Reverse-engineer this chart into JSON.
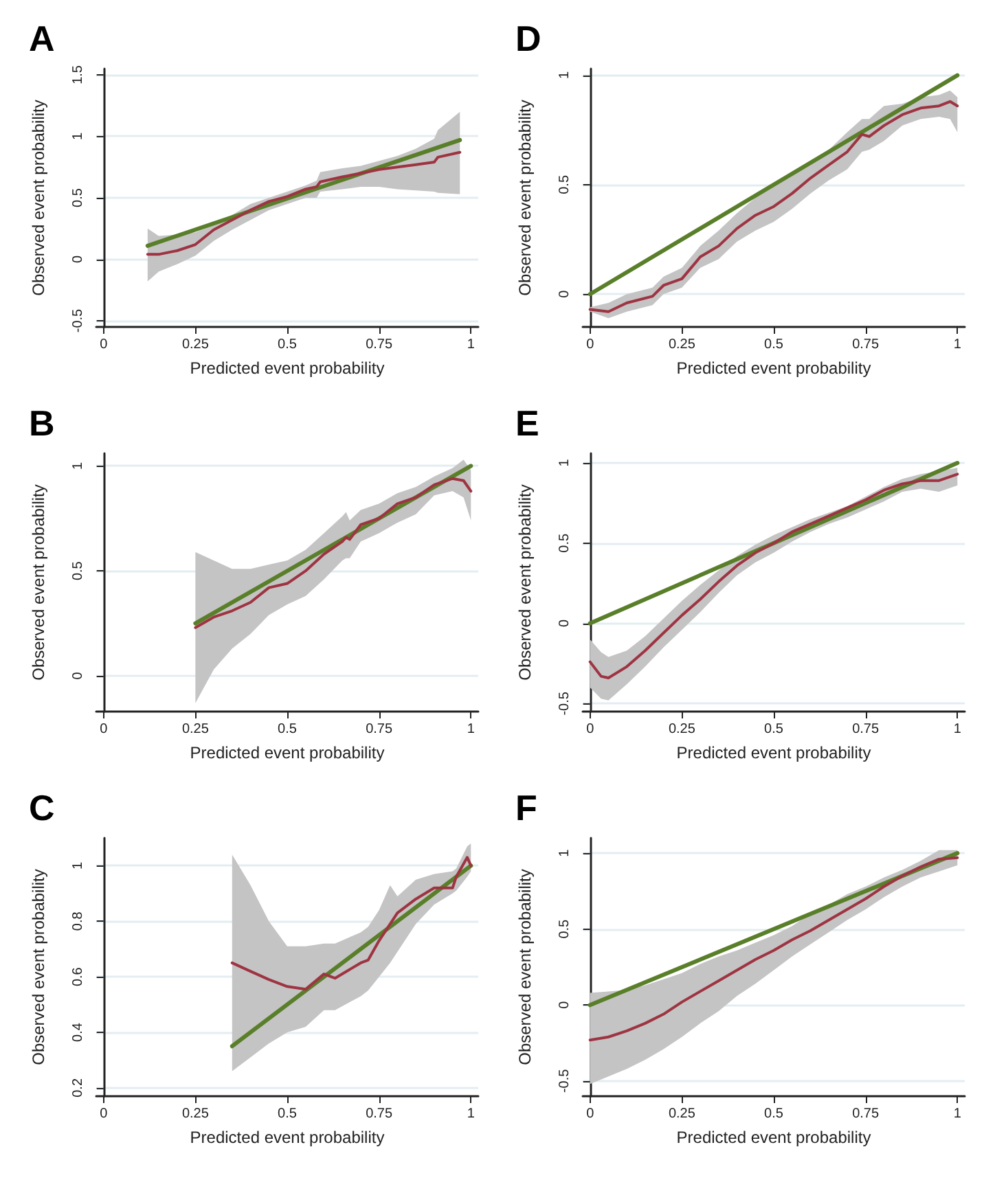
{
  "chart_data": [
    {
      "type": "line",
      "title": "A",
      "xlabel": "Predicted event probability",
      "ylabel": "Observed event probability",
      "xlim": [
        -0.02,
        1.02
      ],
      "xticks": [
        0,
        0.25,
        0.5,
        0.75,
        1
      ],
      "ylim": [
        -0.55,
        1.55
      ],
      "yticks": [
        -0.5,
        0,
        0.5,
        1,
        1.5
      ],
      "grid": "y",
      "marker": "none",
      "line_style": "solid",
      "series": [
        {
          "color": "#9e3442",
          "x": [
            0.12,
            0.15,
            0.2,
            0.25,
            0.3,
            0.35,
            0.4,
            0.45,
            0.5,
            0.55,
            0.58,
            0.59,
            0.65,
            0.7,
            0.75,
            0.8,
            0.85,
            0.9,
            0.91,
            0.97
          ],
          "values": [
            0.04,
            0.04,
            0.07,
            0.12,
            0.24,
            0.32,
            0.4,
            0.47,
            0.51,
            0.57,
            0.59,
            0.63,
            0.67,
            0.7,
            0.73,
            0.75,
            0.77,
            0.79,
            0.83,
            0.87
          ],
          "lower": [
            -0.18,
            -0.1,
            -0.04,
            0.03,
            0.15,
            0.24,
            0.32,
            0.4,
            0.45,
            0.5,
            0.5,
            0.55,
            0.57,
            0.59,
            0.59,
            0.57,
            0.56,
            0.55,
            0.54,
            0.53
          ],
          "upper": [
            0.25,
            0.19,
            0.2,
            0.22,
            0.28,
            0.36,
            0.45,
            0.5,
            0.55,
            0.6,
            0.64,
            0.71,
            0.74,
            0.76,
            0.8,
            0.84,
            0.9,
            0.98,
            1.05,
            1.2
          ]
        },
        {
          "color": "#5a7f2a",
          "x": [
            0.12,
            0.97
          ],
          "values": [
            0.11,
            0.97
          ]
        }
      ]
    },
    {
      "type": "line",
      "title": "D",
      "xlabel": "Predicted event probability",
      "ylabel": "Observed event probability",
      "xlim": [
        -0.02,
        1.02
      ],
      "xticks": [
        0,
        0.25,
        0.5,
        0.75,
        1
      ],
      "ylim": [
        -0.15,
        1.03
      ],
      "yticks": [
        0,
        0.5,
        1
      ],
      "grid": "y",
      "marker": "none",
      "line_style": "solid",
      "series": [
        {
          "color": "#9e3442",
          "x": [
            0,
            0.05,
            0.1,
            0.17,
            0.2,
            0.25,
            0.3,
            0.35,
            0.4,
            0.45,
            0.5,
            0.55,
            0.6,
            0.65,
            0.7,
            0.74,
            0.76,
            0.8,
            0.85,
            0.9,
            0.95,
            0.98,
            1
          ],
          "values": [
            -0.07,
            -0.08,
            -0.04,
            -0.01,
            0.04,
            0.07,
            0.17,
            0.22,
            0.3,
            0.36,
            0.4,
            0.46,
            0.53,
            0.59,
            0.65,
            0.73,
            0.72,
            0.77,
            0.82,
            0.85,
            0.86,
            0.88,
            0.86
          ],
          "lower": [
            -0.08,
            -0.11,
            -0.08,
            -0.05,
            0.0,
            0.03,
            0.12,
            0.16,
            0.24,
            0.29,
            0.33,
            0.39,
            0.46,
            0.52,
            0.57,
            0.65,
            0.66,
            0.7,
            0.77,
            0.8,
            0.81,
            0.8,
            0.74
          ],
          "upper": [
            -0.06,
            -0.04,
            0.0,
            0.03,
            0.08,
            0.12,
            0.22,
            0.29,
            0.37,
            0.44,
            0.49,
            0.54,
            0.6,
            0.66,
            0.74,
            0.8,
            0.8,
            0.86,
            0.87,
            0.9,
            0.91,
            0.93,
            0.9
          ]
        },
        {
          "color": "#5a7f2a",
          "x": [
            0,
            1
          ],
          "values": [
            0,
            1
          ]
        }
      ]
    },
    {
      "type": "line",
      "title": "B",
      "xlabel": "Predicted event probability",
      "ylabel": "Observed event probability",
      "xlim": [
        -0.02,
        1.02
      ],
      "xticks": [
        0,
        0.25,
        0.5,
        0.75,
        1
      ],
      "ylim": [
        -0.17,
        1.06
      ],
      "yticks": [
        0,
        0.5,
        1
      ],
      "grid": "y",
      "marker": "none",
      "line_style": "solid",
      "series": [
        {
          "color": "#9e3442",
          "x": [
            0.25,
            0.3,
            0.35,
            0.4,
            0.45,
            0.5,
            0.55,
            0.6,
            0.65,
            0.66,
            0.67,
            0.7,
            0.75,
            0.8,
            0.85,
            0.9,
            0.95,
            0.98,
            1
          ],
          "values": [
            0.23,
            0.28,
            0.31,
            0.35,
            0.42,
            0.44,
            0.5,
            0.58,
            0.64,
            0.66,
            0.65,
            0.72,
            0.75,
            0.82,
            0.85,
            0.91,
            0.94,
            0.93,
            0.88
          ],
          "lower": [
            -0.13,
            0.03,
            0.13,
            0.2,
            0.29,
            0.34,
            0.38,
            0.46,
            0.55,
            0.56,
            0.56,
            0.64,
            0.68,
            0.73,
            0.77,
            0.86,
            0.88,
            0.85,
            0.74
          ],
          "upper": [
            0.59,
            0.55,
            0.51,
            0.51,
            0.53,
            0.55,
            0.6,
            0.68,
            0.76,
            0.78,
            0.74,
            0.79,
            0.82,
            0.87,
            0.9,
            0.95,
            0.99,
            1.03,
            0.98
          ]
        },
        {
          "color": "#5a7f2a",
          "x": [
            0.25,
            1
          ],
          "values": [
            0.25,
            1
          ]
        }
      ]
    },
    {
      "type": "line",
      "title": "E",
      "xlabel": "Predicted event probability",
      "ylabel": "Observed event probability",
      "xlim": [
        -0.02,
        1.02
      ],
      "xticks": [
        0,
        0.25,
        0.5,
        0.75,
        1
      ],
      "ylim": [
        -0.55,
        1.06
      ],
      "yticks": [
        -0.5,
        0,
        0.5,
        1
      ],
      "grid": "y",
      "marker": "none",
      "line_style": "solid",
      "series": [
        {
          "color": "#9e3442",
          "x": [
            0,
            0.03,
            0.05,
            0.1,
            0.15,
            0.2,
            0.25,
            0.3,
            0.35,
            0.4,
            0.45,
            0.5,
            0.55,
            0.6,
            0.65,
            0.7,
            0.75,
            0.8,
            0.85,
            0.9,
            0.95,
            1
          ],
          "values": [
            -0.24,
            -0.33,
            -0.34,
            -0.27,
            -0.17,
            -0.06,
            0.05,
            0.15,
            0.26,
            0.36,
            0.44,
            0.5,
            0.57,
            0.62,
            0.67,
            0.72,
            0.77,
            0.83,
            0.87,
            0.89,
            0.89,
            0.93
          ],
          "lower": [
            -0.4,
            -0.47,
            -0.48,
            -0.38,
            -0.27,
            -0.15,
            -0.04,
            0.07,
            0.19,
            0.3,
            0.38,
            0.44,
            0.51,
            0.57,
            0.62,
            0.66,
            0.71,
            0.76,
            0.82,
            0.84,
            0.82,
            0.86
          ],
          "upper": [
            -0.1,
            -0.18,
            -0.21,
            -0.17,
            -0.08,
            0.03,
            0.14,
            0.24,
            0.33,
            0.42,
            0.49,
            0.55,
            0.6,
            0.65,
            0.69,
            0.73,
            0.79,
            0.85,
            0.9,
            0.93,
            0.95,
            0.97
          ]
        },
        {
          "color": "#5a7f2a",
          "x": [
            0,
            1
          ],
          "values": [
            0,
            1
          ]
        }
      ]
    },
    {
      "type": "line",
      "title": "C",
      "xlabel": "Predicted event probability",
      "ylabel": "Observed event probability",
      "xlim": [
        -0.02,
        1.02
      ],
      "xticks": [
        0,
        0.25,
        0.5,
        0.75,
        1
      ],
      "ylim": [
        0.17,
        1.1
      ],
      "yticks": [
        0.2,
        0.4,
        0.6,
        0.8,
        1
      ],
      "grid": "y",
      "marker": "none",
      "line_style": "solid",
      "series": [
        {
          "color": "#9e3442",
          "x": [
            0.35,
            0.4,
            0.45,
            0.5,
            0.55,
            0.6,
            0.63,
            0.7,
            0.72,
            0.75,
            0.78,
            0.8,
            0.85,
            0.9,
            0.95,
            0.96,
            0.99,
            1
          ],
          "values": [
            0.65,
            0.62,
            0.59,
            0.565,
            0.555,
            0.61,
            0.595,
            0.65,
            0.66,
            0.73,
            0.79,
            0.83,
            0.88,
            0.92,
            0.92,
            0.96,
            1.03,
            1.0
          ],
          "lower": [
            0.26,
            0.31,
            0.36,
            0.4,
            0.42,
            0.48,
            0.48,
            0.53,
            0.55,
            0.6,
            0.65,
            0.69,
            0.79,
            0.86,
            0.9,
            0.91,
            0.96,
            0.98
          ],
          "upper": [
            1.04,
            0.93,
            0.8,
            0.71,
            0.71,
            0.72,
            0.72,
            0.76,
            0.78,
            0.84,
            0.93,
            0.89,
            0.95,
            0.97,
            0.98,
            0.99,
            1.07,
            1.08
          ]
        },
        {
          "color": "#5a7f2a",
          "x": [
            0.35,
            1
          ],
          "values": [
            0.35,
            1
          ]
        }
      ]
    },
    {
      "type": "line",
      "title": "F",
      "xlabel": "Predicted event probability",
      "ylabel": "Observed event probability",
      "xlim": [
        -0.02,
        1.02
      ],
      "xticks": [
        0,
        0.25,
        0.5,
        0.75,
        1
      ],
      "ylim": [
        -0.6,
        1.1
      ],
      "yticks": [
        -0.5,
        0,
        0.5,
        1
      ],
      "grid": "y",
      "marker": "none",
      "line_style": "solid",
      "series": [
        {
          "color": "#9e3442",
          "x": [
            0,
            0.05,
            0.1,
            0.15,
            0.2,
            0.25,
            0.3,
            0.35,
            0.4,
            0.45,
            0.5,
            0.55,
            0.6,
            0.65,
            0.7,
            0.75,
            0.8,
            0.85,
            0.9,
            0.95,
            1
          ],
          "values": [
            -0.23,
            -0.21,
            -0.17,
            -0.12,
            -0.06,
            0.02,
            0.09,
            0.16,
            0.23,
            0.3,
            0.36,
            0.43,
            0.49,
            0.56,
            0.63,
            0.7,
            0.78,
            0.85,
            0.91,
            0.96,
            0.97
          ],
          "lower": [
            -0.52,
            -0.47,
            -0.42,
            -0.36,
            -0.29,
            -0.21,
            -0.12,
            -0.04,
            0.06,
            0.14,
            0.23,
            0.32,
            0.4,
            0.48,
            0.56,
            0.63,
            0.71,
            0.78,
            0.84,
            0.88,
            0.92
          ],
          "upper": [
            0.08,
            0.09,
            0.1,
            0.13,
            0.17,
            0.21,
            0.27,
            0.32,
            0.36,
            0.41,
            0.46,
            0.52,
            0.6,
            0.66,
            0.73,
            0.78,
            0.84,
            0.89,
            0.95,
            1.02,
            1.02
          ]
        },
        {
          "color": "#5a7f2a",
          "x": [
            0,
            1
          ],
          "values": [
            0,
            1
          ]
        }
      ]
    }
  ]
}
